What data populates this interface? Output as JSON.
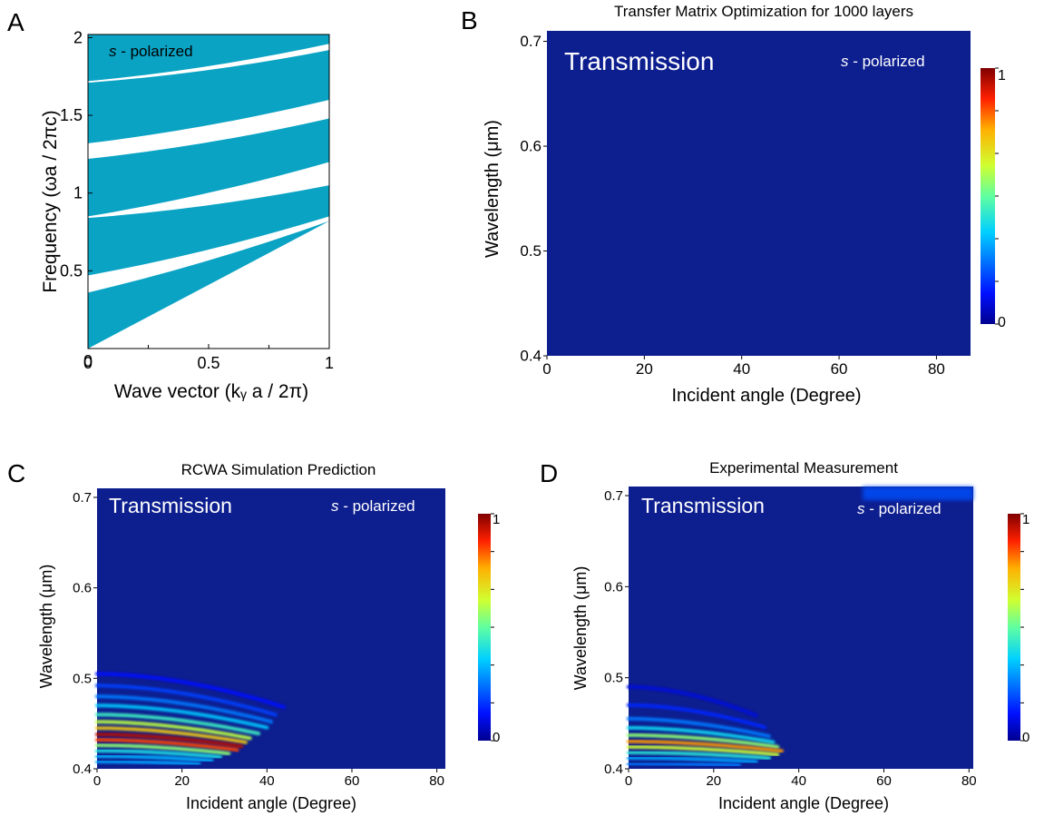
{
  "colors": {
    "band": "#0aa3c4",
    "map_bg": "#0d1e8f",
    "axis": "#000000",
    "white": "#ffffff"
  },
  "chart_data": [
    {
      "id": "A",
      "type": "area",
      "panel_label": "A",
      "title": "",
      "xlabel": "Wave vector (kᵧ a / 2π)",
      "ylabel": "Frequency (ωa / 2πc)",
      "annotation_italic": "s",
      "annotation_rest": " - polarized",
      "xlim": [
        0,
        1
      ],
      "ylim": [
        0,
        2.02
      ],
      "xticks": [
        0,
        0.5,
        1
      ],
      "xtick_labels": [
        "0",
        "0.5",
        "1"
      ],
      "yticks": [
        0.5,
        1,
        1.5,
        2
      ],
      "ytick_labels": [
        "0.5",
        "1",
        "1.5",
        "2"
      ],
      "light_line": {
        "x": [
          0,
          1
        ],
        "y": [
          0,
          0.82
        ]
      },
      "gaps": [
        {
          "x": [
            0,
            1
          ],
          "lower": [
            0.36,
            0.82
          ],
          "upper": [
            0.47,
            0.85
          ]
        },
        {
          "x": [
            0,
            1
          ],
          "lower": [
            0.84,
            1.05
          ],
          "upper": [
            0.85,
            1.2
          ]
        },
        {
          "x": [
            0,
            1
          ],
          "lower": [
            1.22,
            1.48
          ],
          "upper": [
            1.32,
            1.6
          ]
        },
        {
          "x": [
            0,
            1
          ],
          "lower": [
            1.71,
            1.92
          ],
          "upper": [
            1.72,
            1.96
          ]
        }
      ]
    },
    {
      "id": "B",
      "type": "heatmap",
      "panel_label": "B",
      "title": "Transfer Matrix Optimization for 1000 layers",
      "xlabel": "Incident angle (Degree)",
      "ylabel": "Wavelength (μm)",
      "inset_title": "Transmission",
      "annotation_italic": "s",
      "annotation_rest": " - polarized",
      "xlim": [
        0,
        87
      ],
      "ylim": [
        0.4,
        0.71
      ],
      "xticks": [
        0,
        20,
        40,
        60,
        80
      ],
      "xtick_labels": [
        "0",
        "20",
        "40",
        "60",
        "80"
      ],
      "yticks": [
        0.4,
        0.5,
        0.6,
        0.7
      ],
      "ytick_labels": [
        "0.4",
        "0.5",
        "0.6",
        "0.7"
      ],
      "colorbar_range": [
        0,
        1
      ],
      "colorbar_labels": [
        "0",
        "1"
      ],
      "transmission_bands": []
    },
    {
      "id": "C",
      "type": "heatmap",
      "panel_label": "C",
      "title": "RCWA Simulation Prediction",
      "xlabel": "Incident angle (Degree)",
      "ylabel": "Wavelength (μm)",
      "inset_title": "Transmission",
      "annotation_italic": "s",
      "annotation_rest": " - polarized",
      "xlim": [
        0,
        82
      ],
      "ylim": [
        0.4,
        0.71
      ],
      "xticks": [
        0,
        20,
        40,
        60,
        80
      ],
      "xtick_labels": [
        "0",
        "20",
        "40",
        "60",
        "80"
      ],
      "yticks": [
        0.4,
        0.5,
        0.6,
        0.7
      ],
      "ytick_labels": [
        "0.4",
        "0.5",
        "0.6",
        "0.7"
      ],
      "colorbar_range": [
        0,
        1
      ],
      "colorbar_labels": [
        "0",
        "1"
      ],
      "transmission_bands": [
        {
          "wavelength_at_0": 0.505,
          "cutoff_angle": 44,
          "transmission": 0.12
        },
        {
          "wavelength_at_0": 0.492,
          "cutoff_angle": 42,
          "transmission": 0.18
        },
        {
          "wavelength_at_0": 0.48,
          "cutoff_angle": 41,
          "transmission": 0.25
        },
        {
          "wavelength_at_0": 0.47,
          "cutoff_angle": 40,
          "transmission": 0.35
        },
        {
          "wavelength_at_0": 0.46,
          "cutoff_angle": 38,
          "transmission": 0.45
        },
        {
          "wavelength_at_0": 0.452,
          "cutoff_angle": 36,
          "transmission": 0.6
        },
        {
          "wavelength_at_0": 0.445,
          "cutoff_angle": 35,
          "transmission": 0.72
        },
        {
          "wavelength_at_0": 0.438,
          "cutoff_angle": 34,
          "transmission": 0.95
        },
        {
          "wavelength_at_0": 0.432,
          "cutoff_angle": 33,
          "transmission": 0.85
        },
        {
          "wavelength_at_0": 0.426,
          "cutoff_angle": 31,
          "transmission": 0.55
        },
        {
          "wavelength_at_0": 0.42,
          "cutoff_angle": 29,
          "transmission": 0.4
        },
        {
          "wavelength_at_0": 0.414,
          "cutoff_angle": 27,
          "transmission": 0.32
        },
        {
          "wavelength_at_0": 0.408,
          "cutoff_angle": 24,
          "transmission": 0.3
        }
      ]
    },
    {
      "id": "D",
      "type": "heatmap",
      "panel_label": "D",
      "title": "Experimental Measurement",
      "xlabel": "Incident angle (Degree)",
      "ylabel": "Wavelength (μm)",
      "inset_title": "Transmission",
      "annotation_italic": "s",
      "annotation_rest": " - polarized",
      "xlim": [
        0,
        81
      ],
      "ylim": [
        0.4,
        0.71
      ],
      "xticks": [
        0,
        20,
        40,
        60,
        80
      ],
      "xtick_labels": [
        "0",
        "20",
        "40",
        "60",
        "80"
      ],
      "yticks": [
        0.4,
        0.5,
        0.6,
        0.7
      ],
      "ytick_labels": [
        "0.4",
        "0.5",
        "0.6",
        "0.7"
      ],
      "colorbar_range": [
        0,
        1
      ],
      "colorbar_labels": [
        "0",
        "1"
      ],
      "transmission_bands": [
        {
          "wavelength_at_0": 0.49,
          "cutoff_angle": 30,
          "transmission": 0.08
        },
        {
          "wavelength_at_0": 0.47,
          "cutoff_angle": 32,
          "transmission": 0.15
        },
        {
          "wavelength_at_0": 0.455,
          "cutoff_angle": 33,
          "transmission": 0.25
        },
        {
          "wavelength_at_0": 0.445,
          "cutoff_angle": 34,
          "transmission": 0.38
        },
        {
          "wavelength_at_0": 0.437,
          "cutoff_angle": 35,
          "transmission": 0.55
        },
        {
          "wavelength_at_0": 0.43,
          "cutoff_angle": 36,
          "transmission": 0.78
        },
        {
          "wavelength_at_0": 0.424,
          "cutoff_angle": 35,
          "transmission": 0.62
        },
        {
          "wavelength_at_0": 0.418,
          "cutoff_angle": 33,
          "transmission": 0.42
        },
        {
          "wavelength_at_0": 0.412,
          "cutoff_angle": 30,
          "transmission": 0.3
        },
        {
          "wavelength_at_0": 0.406,
          "cutoff_angle": 26,
          "transmission": 0.25
        }
      ],
      "top_edge_glow": {
        "wavelength_from": 0.695,
        "angle_from": 55,
        "transmission": 0.2
      }
    }
  ]
}
